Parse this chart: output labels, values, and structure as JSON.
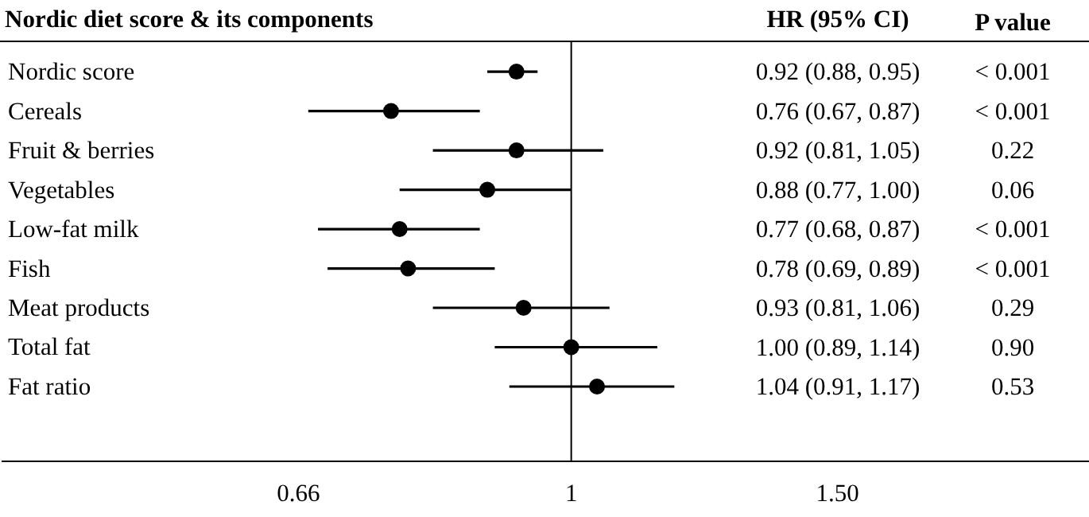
{
  "chart_data": [
    {
      "type": "scatter",
      "orientation": "horizontal",
      "title": "Nordic diet score & its components",
      "categories": [
        "Nordic score",
        "Cereals",
        "Fruit & berries",
        "Vegetables",
        "Low-fat milk",
        "Fish",
        "Meat products",
        "Total fat",
        "Fat ratio"
      ],
      "color": "#000000",
      "values": [
        0.92,
        0.76,
        0.92,
        0.88,
        0.77,
        0.78,
        0.93,
        1.0,
        1.04
      ],
      "errors": [
        [
          0.88,
          0.95
        ],
        [
          0.67,
          0.87
        ],
        [
          0.81,
          1.05
        ],
        [
          0.77,
          1.0
        ],
        [
          0.68,
          0.87
        ],
        [
          0.69,
          0.89
        ],
        [
          0.81,
          1.06
        ],
        [
          0.89,
          1.14
        ],
        [
          0.91,
          1.17
        ]
      ],
      "log": "x",
      "xlim": [
        0.42,
        2.2
      ],
      "xticks": [
        0.66,
        1,
        {
          "value": 1.5,
          "label": "1.50"
        }
      ],
      "ref_lines": [
        {
          "axis": "x",
          "value": 1,
          "color": "#000000"
        }
      ],
      "marker": "circle"
    },
    {
      "type": "other",
      "annotations": [
        "HR (95% CI)",
        "0.92 (0.88, 0.95)",
        "0.76 (0.67, 0.87)",
        "0.92 (0.81, 1.05)",
        "0.88 (0.77, 1.00)",
        "0.77 (0.68, 0.87)",
        "0.78 (0.69, 0.89)",
        "0.93 (0.81, 1.06)",
        "1.00 (0.89, 1.14)",
        "1.04 (0.91, 1.17)",
        "P value",
        "< 0.001",
        "< 0.001",
        "0.22",
        "0.06",
        "< 0.001",
        "< 0.001",
        "0.29",
        "0.90",
        "0.53"
      ]
    }
  ]
}
